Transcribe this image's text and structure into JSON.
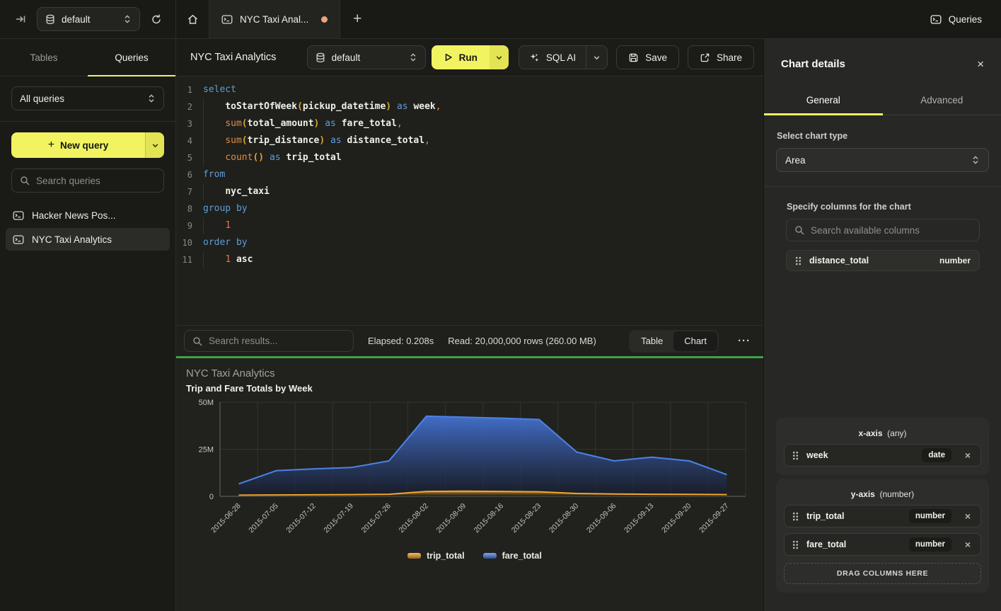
{
  "colors": {
    "accent_yellow": "#F2F360",
    "accent_yellow_dark": "#E3E454",
    "green_divider": "#43A047",
    "tab_dot": "#EFA180",
    "blue_series": "#4C82E8",
    "orange_series": "#F2A52C"
  },
  "topbar": {
    "db_selector": "default",
    "tab_title": "NYC Taxi Anal...",
    "queries_label": "Queries"
  },
  "sidebar": {
    "tabs": [
      {
        "label": "Tables",
        "active": false
      },
      {
        "label": "Queries",
        "active": true
      }
    ],
    "filter_value": "All queries",
    "new_query_label": "New query",
    "search_placeholder": "Search queries",
    "queries": [
      {
        "label": "Hacker News Pos...",
        "active": false
      },
      {
        "label": "NYC Taxi Analytics",
        "active": true
      }
    ]
  },
  "toolbar": {
    "title": "NYC Taxi Analytics",
    "db_selector": "default",
    "run_label": "Run",
    "sql_ai_label": "SQL AI",
    "save_label": "Save",
    "share_label": "Share"
  },
  "editor": {
    "lines": [
      {
        "indent": false,
        "tokens": [
          {
            "t": "select",
            "c": "k"
          }
        ]
      },
      {
        "indent": true,
        "tokens": [
          {
            "t": "    ",
            "c": "w"
          },
          {
            "t": "toStartOfWeek",
            "c": "i"
          },
          {
            "t": "(",
            "c": "p"
          },
          {
            "t": "pickup_datetime",
            "c": "i"
          },
          {
            "t": ")",
            "c": "p"
          },
          {
            "t": " ",
            "c": "w"
          },
          {
            "t": "as",
            "c": "k"
          },
          {
            "t": " ",
            "c": "w"
          },
          {
            "t": "week",
            "c": "i"
          },
          {
            "t": ",",
            "c": "c"
          }
        ]
      },
      {
        "indent": true,
        "tokens": [
          {
            "t": "    ",
            "c": "w"
          },
          {
            "t": "sum",
            "c": "f"
          },
          {
            "t": "(",
            "c": "p"
          },
          {
            "t": "total_amount",
            "c": "i"
          },
          {
            "t": ")",
            "c": "p"
          },
          {
            "t": " ",
            "c": "w"
          },
          {
            "t": "as",
            "c": "k"
          },
          {
            "t": " ",
            "c": "w"
          },
          {
            "t": "fare_total",
            "c": "i"
          },
          {
            "t": ",",
            "c": "c"
          }
        ]
      },
      {
        "indent": true,
        "tokens": [
          {
            "t": "    ",
            "c": "w"
          },
          {
            "t": "sum",
            "c": "f"
          },
          {
            "t": "(",
            "c": "p"
          },
          {
            "t": "trip_distance",
            "c": "i"
          },
          {
            "t": ")",
            "c": "p"
          },
          {
            "t": " ",
            "c": "w"
          },
          {
            "t": "as",
            "c": "k"
          },
          {
            "t": " ",
            "c": "w"
          },
          {
            "t": "distance_total",
            "c": "i"
          },
          {
            "t": ",",
            "c": "c"
          }
        ]
      },
      {
        "indent": true,
        "tokens": [
          {
            "t": "    ",
            "c": "w"
          },
          {
            "t": "count",
            "c": "f"
          },
          {
            "t": "(",
            "c": "p"
          },
          {
            "t": ")",
            "c": "p"
          },
          {
            "t": " ",
            "c": "w"
          },
          {
            "t": "as",
            "c": "k"
          },
          {
            "t": " ",
            "c": "w"
          },
          {
            "t": "trip_total",
            "c": "i"
          }
        ]
      },
      {
        "indent": false,
        "tokens": [
          {
            "t": "from",
            "c": "k"
          }
        ]
      },
      {
        "indent": true,
        "tokens": [
          {
            "t": "    ",
            "c": "w"
          },
          {
            "t": "nyc_taxi",
            "c": "i"
          }
        ]
      },
      {
        "indent": false,
        "tokens": [
          {
            "t": "group by",
            "c": "k"
          }
        ]
      },
      {
        "indent": true,
        "tokens": [
          {
            "t": "    ",
            "c": "w"
          },
          {
            "t": "1",
            "c": "n"
          }
        ]
      },
      {
        "indent": false,
        "tokens": [
          {
            "t": "order by",
            "c": "k"
          }
        ]
      },
      {
        "indent": true,
        "tokens": [
          {
            "t": "    ",
            "c": "w"
          },
          {
            "t": "1",
            "c": "n"
          },
          {
            "t": " ",
            "c": "w"
          },
          {
            "t": "asc",
            "c": "i"
          }
        ]
      }
    ]
  },
  "results_bar": {
    "search_placeholder": "Search results...",
    "elapsed": "Elapsed: 0.208s",
    "read": "Read: 20,000,000 rows (260.00 MB)",
    "view_tabs": [
      {
        "label": "Table",
        "active": false
      },
      {
        "label": "Chart",
        "active": true
      }
    ]
  },
  "chart_data": {
    "type": "area",
    "title": "NYC Taxi Analytics",
    "subtitle": "Trip and Fare Totals by Week",
    "categories": [
      "2015-06-28",
      "2015-07-05",
      "2015-07-12",
      "2015-07-19",
      "2015-07-26",
      "2015-08-02",
      "2015-08-09",
      "2015-08-16",
      "2015-08-23",
      "2015-08-30",
      "2015-09-06",
      "2015-09-13",
      "2015-09-20",
      "2015-09-27"
    ],
    "series": [
      {
        "name": "trip_total",
        "color": "#F2A52C",
        "values": [
          600000,
          700000,
          800000,
          900000,
          1100000,
          2600000,
          2700000,
          2600000,
          2400000,
          1500000,
          1200000,
          1100000,
          1000000,
          900000
        ]
      },
      {
        "name": "fare_total",
        "color": "#4C82E8",
        "values": [
          6600000,
          13600000,
          14600000,
          15300000,
          18800000,
          42600000,
          42000000,
          41500000,
          40800000,
          23500000,
          18800000,
          20800000,
          18800000,
          11500000
        ]
      }
    ],
    "ylim": [
      0,
      50000000
    ],
    "yticks": [
      {
        "label": "0",
        "value": 0
      },
      {
        "label": "25M",
        "value": 25000000
      },
      {
        "label": "50M",
        "value": 50000000
      }
    ],
    "grid": true,
    "legend_position": "bottom"
  },
  "panel": {
    "title": "Chart details",
    "tabs": [
      {
        "label": "General",
        "active": true
      },
      {
        "label": "Advanced",
        "active": false
      }
    ],
    "chart_type_label": "Select chart type",
    "chart_type_value": "Area",
    "columns_label": "Specify columns for the chart",
    "search_placeholder": "Search available columns",
    "available_columns": [
      {
        "name": "distance_total",
        "type": "number"
      }
    ],
    "x_axis": {
      "title": "x-axis",
      "hint": "(any)",
      "items": [
        {
          "name": "week",
          "type": "date"
        }
      ]
    },
    "y_axis": {
      "title": "y-axis",
      "hint": "(number)",
      "items": [
        {
          "name": "trip_total",
          "type": "number"
        },
        {
          "name": "fare_total",
          "type": "number"
        }
      ],
      "drop_label": "DRAG COLUMNS HERE"
    }
  }
}
